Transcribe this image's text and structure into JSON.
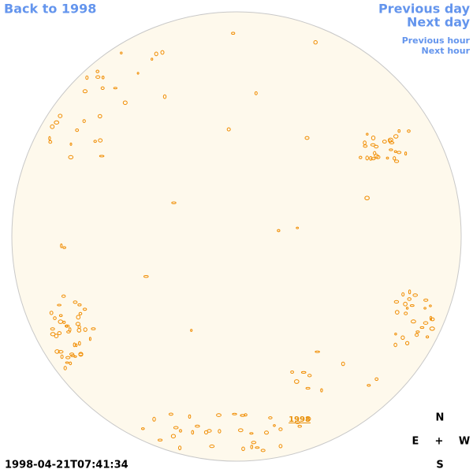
{
  "navigation": {
    "back": "Back to 1998",
    "previous_day": "Previous day",
    "next_day": "Next day",
    "previous_hour": "Previous hour",
    "next_hour": "Next hour"
  },
  "year_link": "1998",
  "compass": {
    "north": "N",
    "east": "E",
    "center": "+",
    "west": "W",
    "south": "S"
  },
  "timestamp": "1998-04-21T07:41:34"
}
